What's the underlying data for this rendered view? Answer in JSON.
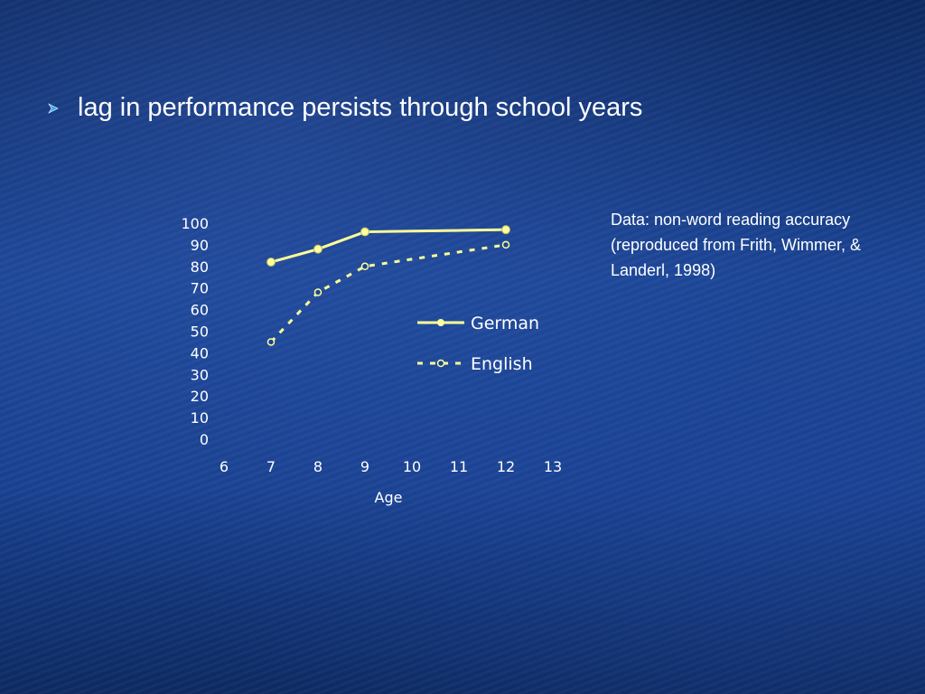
{
  "slide": {
    "bullet_icon": "arrow-bullet-icon",
    "bullet_text": "lag in performance persists through school years",
    "note": "Data: non-word reading accuracy (reproduced from Frith, Wimmer, & Landerl, 1998)"
  },
  "colors": {
    "background": "#1a4494",
    "series_line": "#ffff99",
    "text": "#ffffff",
    "bullet": "#3fa9f5"
  },
  "chart_data": {
    "type": "line",
    "title": "",
    "xlabel": "Age",
    "ylabel": "",
    "xlim": [
      6,
      13
    ],
    "ylim": [
      0,
      100
    ],
    "x_ticks": [
      6,
      7,
      8,
      9,
      10,
      11,
      12,
      13
    ],
    "y_ticks": [
      0,
      10,
      20,
      30,
      40,
      50,
      60,
      70,
      80,
      90,
      100
    ],
    "grid": false,
    "legend_position": "center-right",
    "series": [
      {
        "name": "German",
        "style": "solid",
        "marker": "filled-circle",
        "points": [
          [
            7,
            82
          ],
          [
            8,
            88
          ],
          [
            9,
            96
          ],
          [
            12,
            97
          ]
        ]
      },
      {
        "name": "English",
        "style": "dashed",
        "marker": "open-circle",
        "points": [
          [
            7,
            45
          ],
          [
            8,
            68
          ],
          [
            9,
            80
          ],
          [
            12,
            90
          ]
        ]
      }
    ]
  }
}
